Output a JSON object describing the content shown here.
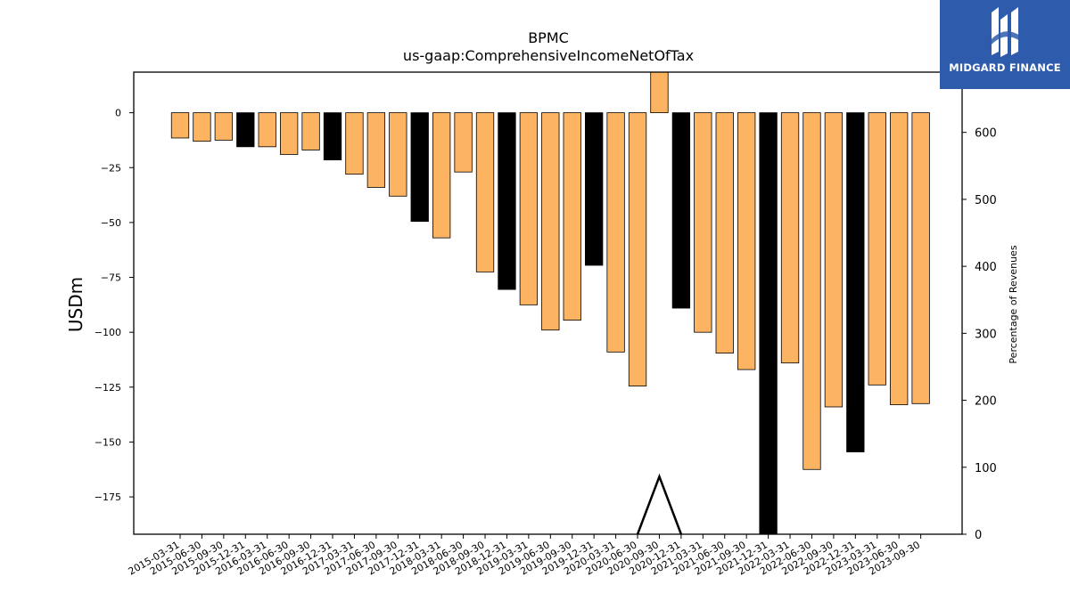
{
  "chart_data": {
    "type": "bar",
    "title": "BPMC",
    "subtitle": "us-gaap:ComprehensiveIncomeNetOfTax",
    "ylabel": "USDm",
    "y2label": "Percentage of Revenues",
    "ylim": [
      -192,
      18.5
    ],
    "y2lim": [
      0,
      690
    ],
    "yticks": [
      0,
      -25,
      -50,
      -75,
      -100,
      -125,
      -150,
      -175
    ],
    "y2ticks": [
      0,
      100,
      200,
      300,
      400,
      500,
      600
    ],
    "categories": [
      "2015-03-31",
      "2015-06-30",
      "2015-09-30",
      "2015-12-31",
      "2016-03-31",
      "2016-06-30",
      "2016-09-30",
      "2016-12-31",
      "2017-03-31",
      "2017-06-30",
      "2017-09-30",
      "2017-12-31",
      "2018-03-31",
      "2018-06-30",
      "2018-09-30",
      "2018-12-31",
      "2019-03-31",
      "2019-06-30",
      "2019-09-30",
      "2019-12-31",
      "2020-03-31",
      "2020-06-30",
      "2020-09-30",
      "2020-12-31",
      "2021-03-31",
      "2021-06-30",
      "2021-09-30",
      "2021-12-31",
      "2022-03-31",
      "2022-06-30",
      "2022-09-30",
      "2022-12-31",
      "2023-03-31",
      "2023-06-30",
      "2023-09-30"
    ],
    "values": [
      -11.5,
      -13,
      -12.5,
      -15.5,
      -15.5,
      -19,
      -17,
      -21.5,
      -28,
      -34,
      -38,
      -49.5,
      -57,
      -27,
      -72.5,
      -80.5,
      -87.5,
      -99,
      -94.5,
      -69.5,
      -109,
      -124.5,
      18.5,
      -89,
      -100,
      -109.5,
      -117,
      -192,
      -114,
      -162.5,
      -134,
      -154.5,
      -124,
      -133,
      -132.5
    ],
    "highlight": [
      false,
      false,
      false,
      true,
      false,
      false,
      false,
      true,
      false,
      false,
      false,
      true,
      false,
      false,
      false,
      true,
      false,
      false,
      false,
      true,
      false,
      false,
      false,
      true,
      false,
      false,
      false,
      true,
      false,
      false,
      false,
      true,
      false,
      false,
      false
    ],
    "colors": {
      "bar": "#fdb462",
      "highlight": "#000000",
      "line": "#000000"
    },
    "line_series": {
      "axis": "right",
      "points": [
        {
          "x": "2020-06-30",
          "y": 0
        },
        {
          "x": "2020-09-30",
          "y": 86
        },
        {
          "x": "2020-12-31",
          "y": 0
        }
      ]
    },
    "legend": "none",
    "grid": false
  },
  "logo": {
    "text": "MIDGARD FINANCE",
    "icon": "midgard-mark-icon",
    "background": "#2e5bab"
  }
}
